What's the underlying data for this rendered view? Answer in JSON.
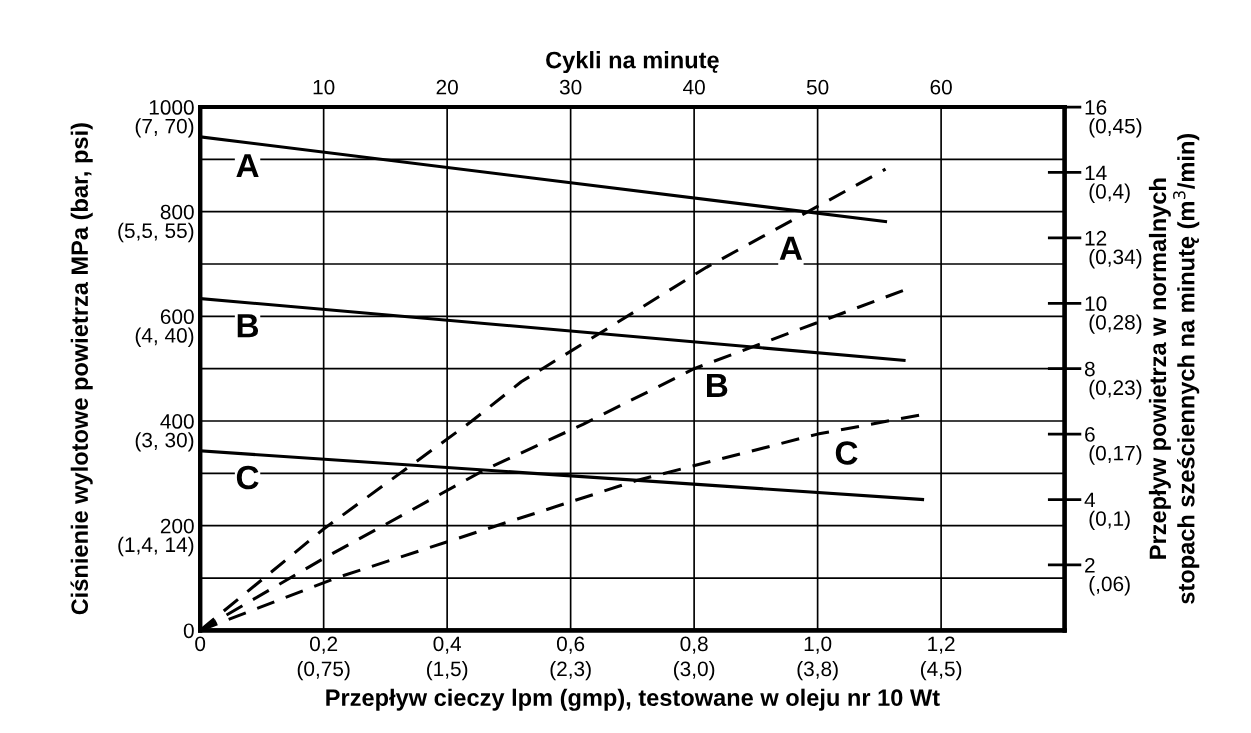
{
  "chart_data": {
    "type": "line",
    "xlabel": "Przepływ cieczy lpm (gmp), testowane w oleju nr 10 Wt",
    "x2label": "Cykli na minutę",
    "ylabel": "Ciśnienie wylotowe powietrza MPa (bar, psi)",
    "y2label": "Przepływ powietrza w normalnych\nstopach sześciennych na minutę (m$^{3}$/min)",
    "xlim": [
      0,
      1.4
    ],
    "xticks": [
      {
        "value": 0,
        "label": "0"
      },
      {
        "value": 0.2,
        "label": "0,2"
      },
      {
        "value": 0.4,
        "label": "0,4"
      },
      {
        "value": 0.6,
        "label": "0,6"
      },
      {
        "value": 0.8,
        "label": "0,8"
      },
      {
        "value": 1.0,
        "label": "1,0"
      },
      {
        "value": 1.2,
        "label": "1,2"
      }
    ],
    "x2lim": [
      0,
      70
    ],
    "x2ticks": [
      10,
      20,
      30,
      40,
      50,
      60
    ],
    "ylim": [
      0,
      1000
    ],
    "yticks": [
      0,
      {
        "value": 100,
        "label": null
      },
      200,
      {
        "value": 300,
        "label": null
      },
      400,
      {
        "value": 500,
        "label": null
      },
      600,
      {
        "value": 700,
        "label": null
      },
      800,
      {
        "value": 900,
        "label": null
      },
      1000
    ],
    "y2lim": [
      0,
      16
    ],
    "y2ticks": [
      2,
      4,
      6,
      8,
      10,
      12,
      14,
      16
    ],
    "grid": true,
    "legend": false,
    "marker": "none",
    "series": [
      {
        "color": "#000000",
        "line_style": "solid",
        "x": [
          0,
          1.11
        ],
        "values": [
          943,
          781
        ]
      },
      {
        "color": "#000000",
        "line_style": "solid",
        "x": [
          0,
          1.14
        ],
        "values": [
          634,
          516
        ]
      },
      {
        "color": "#000000",
        "line_style": "solid",
        "x": [
          0,
          1.17
        ],
        "values": [
          343,
          250
        ]
      },
      {
        "color": "#000000",
        "line_style": "dashed",
        "axis": "y2",
        "x": [
          0,
          0.2,
          0.44,
          0.52,
          0.82,
          1.11
        ],
        "values": [
          0,
          3.1,
          6.4,
          7.6,
          11.1,
          14.1
        ]
      },
      {
        "color": "#000000",
        "line_style": "dashed",
        "axis": "y2",
        "x": [
          0,
          0.2,
          0.46,
          0.62,
          0.8,
          1.14
        ],
        "values": [
          0,
          2.2,
          4.9,
          6.3,
          8.0,
          10.4
        ]
      },
      {
        "color": "#000000",
        "line_style": "dashed",
        "axis": "y2",
        "x": [
          0,
          0.22,
          0.48,
          0.71,
          1.0,
          1.17
        ],
        "values": [
          0,
          1.6,
          3.2,
          4.6,
          6.0,
          6.6
        ]
      }
    ],
    "annotations": [
      {
        "text": "A",
        "x": 0.07,
        "y": 933
      },
      {
        "text": "B",
        "x": 0.07,
        "y": 627
      },
      {
        "text": "C",
        "x": 0.07,
        "y": 337
      },
      {
        "text": "A",
        "x": 0.95,
        "y": 775
      },
      {
        "text": "B",
        "x": 0.83,
        "y": 513
      },
      {
        "text": "C",
        "x": 1.04,
        "y": 384
      },
      "(0,75)",
      "(1,5)",
      "(2,3)",
      "(3,0)",
      "(3,8)",
      "(4,5)",
      "(1,4, 14)",
      "(3, 30)",
      "(4, 40)",
      "(5,5, 55)",
      "(7, 70)",
      "(,06)",
      "(0,1)",
      "(0,17)",
      "(0,23)",
      "(0,28)",
      "(0,34)",
      "(0,4)",
      "(0,45)"
    ]
  }
}
